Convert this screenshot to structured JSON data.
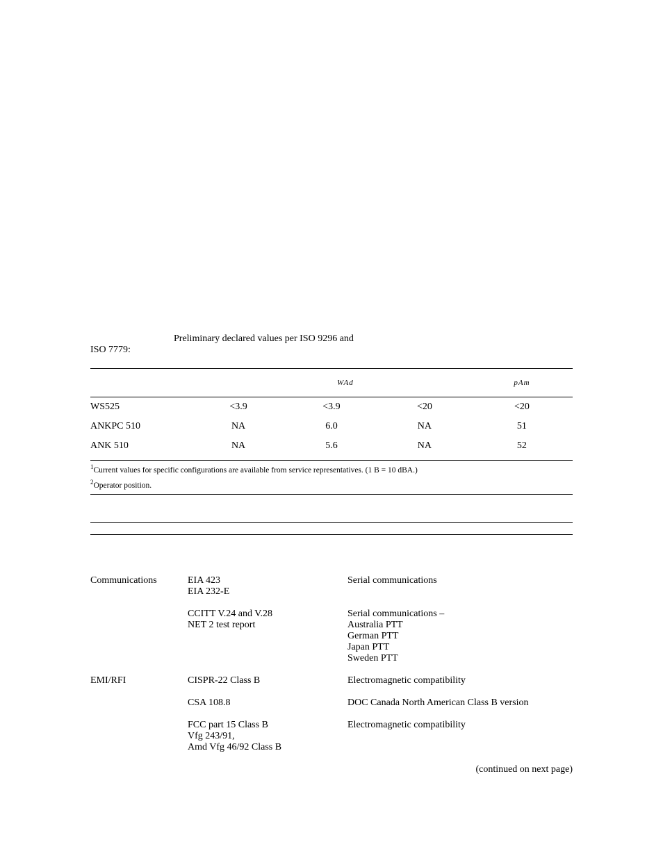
{
  "intro": {
    "line1": "Preliminary declared values per ISO 9296 and",
    "line2": "ISO 7779:"
  },
  "table1": {
    "headers": {
      "lwad": "WAd",
      "lpam": "pAm"
    },
    "rows": [
      {
        "label": "WS525",
        "v1": "<3.9",
        "v2": "<3.9",
        "v3": "<20",
        "v4": "<20"
      },
      {
        "label": "ANKPC 510",
        "v1": "NA",
        "v2": "6.0",
        "v3": "NA",
        "v4": "51"
      },
      {
        "label": "ANK 510",
        "v1": "NA",
        "v2": "5.6",
        "v3": "NA",
        "v4": "52"
      }
    ],
    "footnote1_sup": "1",
    "footnote1_text": "Current values for specific configurations are available from service representatives. (1 B = 10 dBA.)",
    "footnote2_sup": "2",
    "footnote2_text": "Operator position."
  },
  "table2": {
    "rows": [
      {
        "cat": "Communications",
        "std": "EIA 423\nEIA 232-E",
        "desc": "Serial communications"
      },
      {
        "cat": "",
        "std": "CCITT V.24 and V.28\nNET 2 test report",
        "desc": "Serial communications –\nAustralia PTT\nGerman PTT\nJapan PTT\nSweden PTT"
      },
      {
        "cat": "EMI/RFI",
        "std": "CISPR-22 Class B",
        "desc": "Electromagnetic compatibility"
      },
      {
        "cat": "",
        "std": "CSA 108.8",
        "desc": "DOC Canada North American Class B version"
      },
      {
        "cat": "",
        "std": "FCC part 15 Class B\nVfg 243/91,\nAmd Vfg 46/92 Class B",
        "desc": "Electromagnetic compatibility"
      }
    ],
    "continued": "(continued on next page)"
  }
}
